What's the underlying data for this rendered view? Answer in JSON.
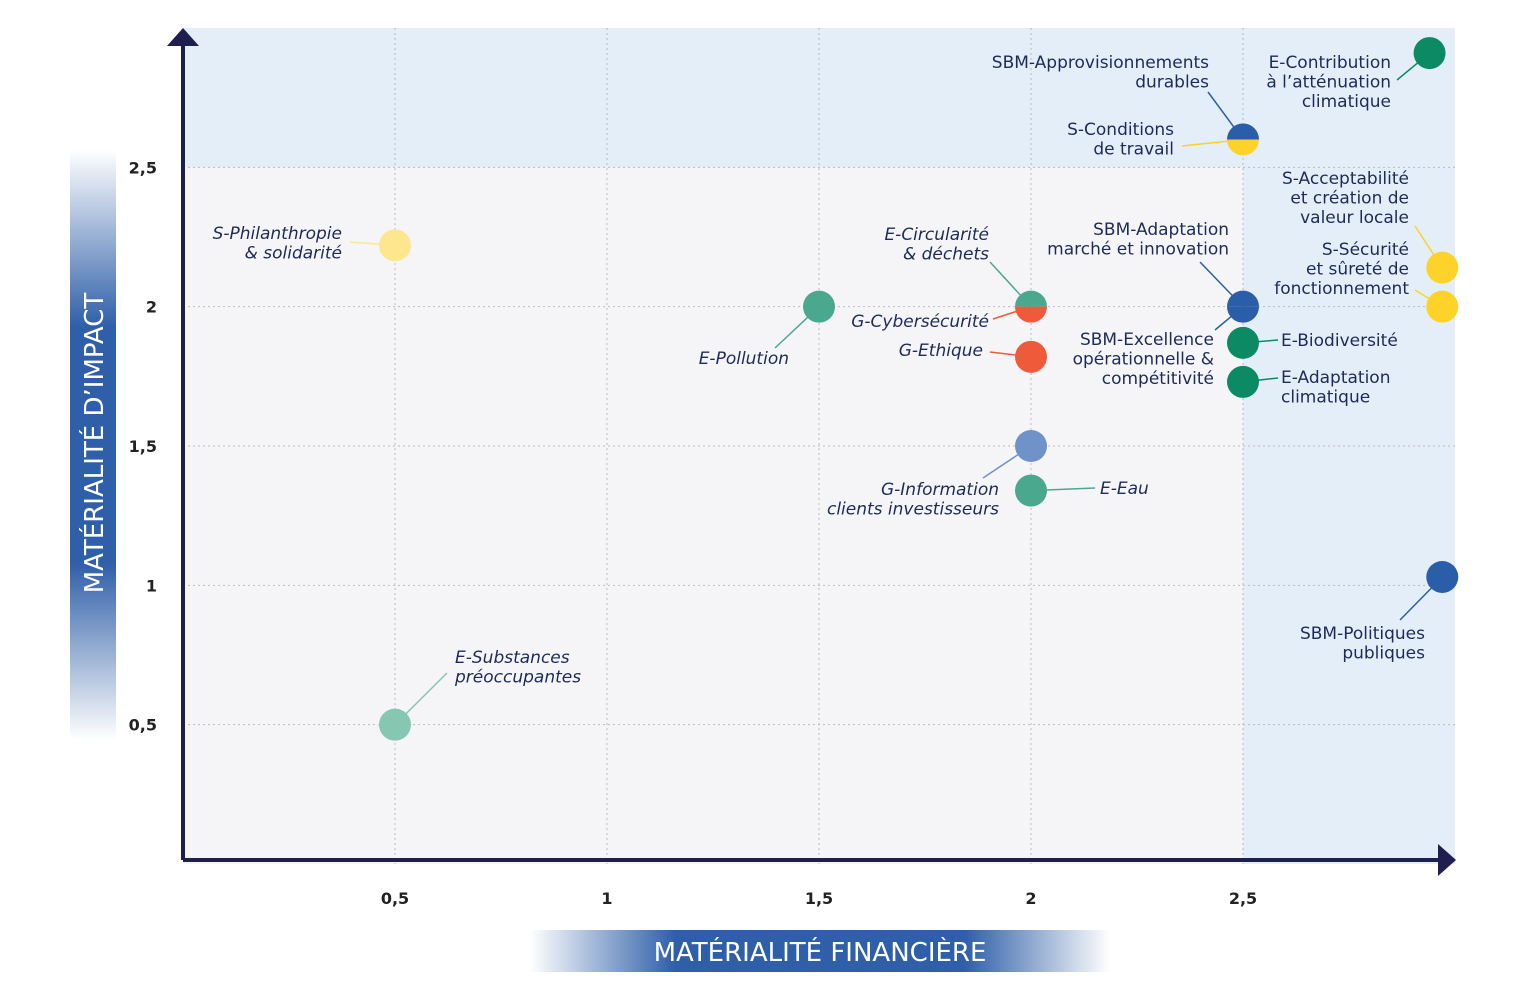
{
  "chart_data": {
    "type": "scatter",
    "x_label": "MATÉRIALITÉ FINANCIÈRE",
    "y_label": "MATÉRIALITÉ D’IMPACT",
    "xlim": [
      0,
      3
    ],
    "ylim": [
      0,
      3
    ],
    "xticks": [
      {
        "value": 0.5,
        "label": "0,5"
      },
      1,
      {
        "value": 1.5,
        "label": "1,5"
      },
      2,
      {
        "value": 2.5,
        "label": "2,5"
      }
    ],
    "yticks": [
      {
        "value": 0.5,
        "label": "0,5"
      },
      1,
      {
        "value": 1.5,
        "label": "1,5"
      },
      2,
      {
        "value": 2.5,
        "label": "2,5"
      }
    ],
    "grid": true,
    "points": [
      {
        "label": [
          "S-Philanthropie",
          "& solidarité"
        ],
        "x": 0.5,
        "y": 2.22,
        "color": "#fde68e"
      },
      {
        "label": [
          "E-Substances",
          "préoccupantes"
        ],
        "x": 0.5,
        "y": 0.5,
        "color": "#86c7b1"
      },
      {
        "label": [
          "E-Pollution"
        ],
        "x": 1.5,
        "y": 2.0,
        "color": "#4aa88f"
      },
      {
        "label": [
          "E-Circularité",
          "& déchets"
        ],
        "x": 2.0,
        "y": 2.0,
        "color": "#4aa88f"
      },
      {
        "label": [
          "G-Cybersécurité"
        ],
        "x": 2.0,
        "y": 2.0,
        "color": "#ee5a3a"
      },
      {
        "label": [
          "G-Ethique"
        ],
        "x": 2.0,
        "y": 1.82,
        "color": "#ee5a3a"
      },
      {
        "label": [
          "G-Information",
          "clients investisseurs"
        ],
        "x": 2.0,
        "y": 1.5,
        "color": "#6f93c9"
      },
      {
        "label": [
          "E-Eau"
        ],
        "x": 2.0,
        "y": 1.34,
        "color": "#4aa88f"
      },
      {
        "label": [
          "SBM-Approvisionnements",
          "durables"
        ],
        "x": 2.5,
        "y": 2.6,
        "color": "#2a5ea8"
      },
      {
        "label": [
          "S-Conditions",
          "de travail"
        ],
        "x": 2.5,
        "y": 2.6,
        "color": "#fdd32a"
      },
      {
        "label": [
          "SBM-Adaptation",
          "marché et innovation"
        ],
        "x": 2.5,
        "y": 2.0,
        "color": "#2a5ea8"
      },
      {
        "label": [
          "SBM-Excellence",
          "opérationnelle &",
          "compétitivité"
        ],
        "x": 2.5,
        "y": 2.0,
        "color": "#2a5ea8"
      },
      {
        "label": [
          "E-Biodiversité"
        ],
        "x": 2.5,
        "y": 1.87,
        "color": "#0b8a64"
      },
      {
        "label": [
          "E-Adaptation",
          "climatique"
        ],
        "x": 2.5,
        "y": 1.73,
        "color": "#0b8a64"
      },
      {
        "label": [
          "E-Contribution",
          "à l’atténuation",
          "climatique"
        ],
        "x": 2.94,
        "y": 2.91,
        "color": "#0b8a64"
      },
      {
        "label": [
          "S-Acceptabilité",
          "et création de",
          "valeur locale"
        ],
        "x": 2.97,
        "y": 2.14,
        "color": "#fdd32a"
      },
      {
        "label": [
          "S-Sécurité",
          "et sûreté de",
          "fonctionnement"
        ],
        "x": 2.97,
        "y": 2.0,
        "color": "#fdd32a"
      },
      {
        "label": [
          "SBM-Politiques",
          "publiques"
        ],
        "x": 2.97,
        "y": 1.03,
        "color": "#2a5ea8"
      }
    ]
  }
}
